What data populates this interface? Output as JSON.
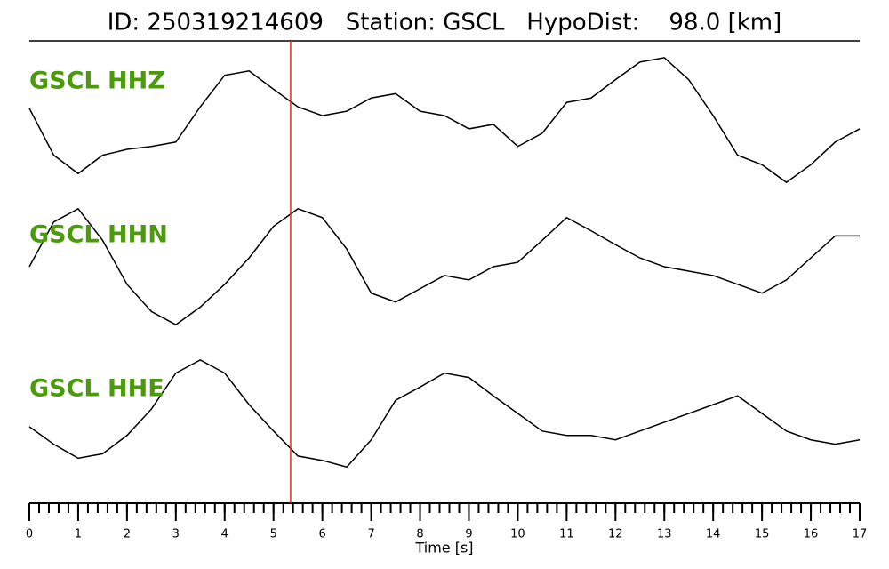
{
  "chart_data": {
    "type": "line",
    "title": "ID: 250319214609   Station: GSCL   HypoDist:    98.0 [km]",
    "xlabel": "Time [s]",
    "x": [
      0,
      0.5,
      1,
      1.5,
      2,
      2.5,
      3,
      3.5,
      4,
      4.5,
      5,
      5.5,
      6,
      6.5,
      7,
      7.5,
      8,
      8.5,
      9,
      9.5,
      10,
      10.5,
      11,
      11.5,
      12,
      12.5,
      13,
      13.5,
      14,
      14.5,
      15,
      15.5,
      16,
      16.5,
      17
    ],
    "xlim": [
      0,
      17
    ],
    "xticks": [
      0,
      1,
      2,
      3,
      4,
      5,
      6,
      7,
      8,
      9,
      10,
      11,
      12,
      13,
      14,
      15,
      16,
      17
    ],
    "minor_tick_step": 0.2,
    "ylim": [
      -1,
      1
    ],
    "label_color": "#4a9a0a",
    "marker_x": 5.35,
    "marker_color": "#e8261f",
    "series": [
      {
        "name": "GSCL HHZ",
        "color": "#000000",
        "values": [
          0.19,
          -0.45,
          -0.7,
          -0.45,
          -0.37,
          -0.33,
          -0.27,
          0.21,
          0.64,
          0.7,
          0.45,
          0.21,
          0.09,
          0.15,
          0.33,
          0.39,
          0.15,
          0.09,
          -0.09,
          -0.03,
          -0.33,
          -0.15,
          0.27,
          0.33,
          0.58,
          0.82,
          0.88,
          0.58,
          0.09,
          -0.45,
          -0.58,
          -0.82,
          -0.58,
          -0.27,
          -0.09
        ]
      },
      {
        "name": "GSCL HHN",
        "color": "#000000",
        "values": [
          0.03,
          0.64,
          0.82,
          0.39,
          -0.21,
          -0.58,
          -0.76,
          -0.52,
          -0.21,
          0.15,
          0.58,
          0.82,
          0.7,
          0.27,
          -0.33,
          -0.45,
          -0.27,
          -0.09,
          -0.15,
          0.03,
          0.09,
          0.39,
          0.7,
          0.52,
          0.33,
          0.15,
          0.03,
          -0.03,
          -0.09,
          -0.21,
          -0.33,
          -0.15,
          0.15,
          0.45,
          0.45
        ]
      },
      {
        "name": "GSCL HHE",
        "color": "#000000",
        "values": [
          -0.15,
          -0.39,
          -0.58,
          -0.52,
          -0.27,
          0.09,
          0.58,
          0.76,
          0.58,
          0.15,
          -0.21,
          -0.55,
          -0.61,
          -0.7,
          -0.33,
          0.21,
          0.39,
          0.58,
          0.52,
          0.27,
          0.03,
          -0.21,
          -0.27,
          -0.27,
          -0.33,
          -0.21,
          -0.09,
          0.03,
          0.15,
          0.27,
          0.03,
          -0.21,
          -0.33,
          -0.39,
          -0.33
        ]
      }
    ]
  }
}
